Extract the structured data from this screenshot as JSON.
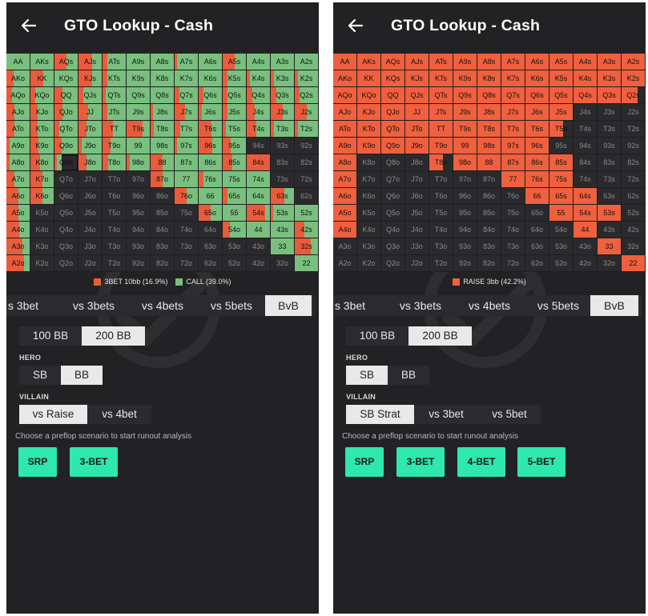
{
  "colors": {
    "panel_bg": "#222225",
    "empty_cell": "#2a2a2d",
    "action_red": "#ea5b3b",
    "call_green": "#79c07f",
    "raise_red": "#f0603e",
    "accent_teal": "#2ee8ae"
  },
  "hand_labels": [
    [
      "AA",
      "AKs",
      "AQs",
      "AJs",
      "ATs",
      "A9s",
      "A8s",
      "A7s",
      "A6s",
      "A5s",
      "A4s",
      "A3s",
      "A2s"
    ],
    [
      "AKo",
      "KK",
      "KQs",
      "KJs",
      "KTs",
      "K9s",
      "K8s",
      "K7s",
      "K6s",
      "K5s",
      "K4s",
      "K3s",
      "K2s"
    ],
    [
      "AQo",
      "KQo",
      "QQ",
      "QJs",
      "QTs",
      "Q9s",
      "Q8s",
      "Q7s",
      "Q6s",
      "Q5s",
      "Q4s",
      "Q3s",
      "Q2s"
    ],
    [
      "AJo",
      "KJo",
      "QJo",
      "JJ",
      "JTs",
      "J9s",
      "J8s",
      "J7s",
      "J6s",
      "J5s",
      "J4s",
      "J3s",
      "J2s"
    ],
    [
      "ATo",
      "KTo",
      "QTo",
      "JTo",
      "TT",
      "T9s",
      "T8s",
      "T7s",
      "T6s",
      "T5s",
      "T4s",
      "T3s",
      "T2s"
    ],
    [
      "A9o",
      "K9o",
      "Q9o",
      "J9o",
      "T9o",
      "99",
      "98s",
      "97s",
      "96s",
      "95s",
      "94s",
      "93s",
      "92s"
    ],
    [
      "A8o",
      "K8o",
      "Q8o",
      "J8o",
      "T8o",
      "98o",
      "88",
      "87s",
      "86s",
      "85s",
      "84s",
      "83s",
      "82s"
    ],
    [
      "A7o",
      "K7o",
      "Q7o",
      "J7o",
      "T7o",
      "97o",
      "87o",
      "77",
      "76s",
      "75s",
      "74s",
      "73s",
      "72s"
    ],
    [
      "A6o",
      "K6o",
      "Q6o",
      "J6o",
      "T6o",
      "96o",
      "86o",
      "76o",
      "66",
      "65s",
      "64s",
      "63s",
      "62s"
    ],
    [
      "A5o",
      "K5o",
      "Q5o",
      "J5o",
      "T5o",
      "95o",
      "85o",
      "75o",
      "65o",
      "55",
      "54s",
      "53s",
      "52s"
    ],
    [
      "A4o",
      "K4o",
      "Q4o",
      "J4o",
      "T4o",
      "94o",
      "84o",
      "74o",
      "64o",
      "54o",
      "44",
      "43s",
      "42s"
    ],
    [
      "A3o",
      "K3o",
      "Q3o",
      "J3o",
      "T3o",
      "93o",
      "83o",
      "73o",
      "63o",
      "53o",
      "43o",
      "33",
      "32s"
    ],
    [
      "A2o",
      "K2o",
      "Q2o",
      "J2o",
      "T2o",
      "92o",
      "82o",
      "72o",
      "62o",
      "52o",
      "42o",
      "32o",
      "22"
    ]
  ],
  "left": {
    "title": "GTO Lookup - Cash",
    "back_icon": "arrow-left-icon",
    "legend": [
      {
        "label": "3BET 10bb (16.9%)",
        "color": "#ea5b3b"
      },
      {
        "label": "CALL (39.0%)",
        "color": "#79c07f"
      }
    ],
    "tabs": [
      {
        "label": "s 3bet",
        "active": false
      },
      {
        "label": "vs 3bets",
        "active": false
      },
      {
        "label": "vs 4bets",
        "active": false
      },
      {
        "label": "vs 5bets",
        "active": false
      },
      {
        "label": "BvB",
        "active": true
      }
    ],
    "stacks": [
      {
        "label": "100 BB",
        "active": false
      },
      {
        "label": "200 BB",
        "active": true
      }
    ],
    "hero_label": "HERO",
    "hero": [
      {
        "label": "SB",
        "active": false
      },
      {
        "label": "BB",
        "active": true
      }
    ],
    "villain_label": "VILLAIN",
    "villain": [
      {
        "label": "vs Raise",
        "active": true
      },
      {
        "label": "vs 4bet",
        "active": false
      }
    ],
    "hint": "Choose a preflop scenario to start runout analysis",
    "buttons": [
      "SRP",
      "3-BET"
    ],
    "strategy": [
      [
        [
          0,
          1
        ],
        [
          0,
          1
        ],
        [
          0.5,
          0.5
        ],
        [
          0.6,
          0.4
        ],
        [
          0.2,
          0.8
        ],
        [
          0,
          1
        ],
        [
          0,
          1
        ],
        [
          0.1,
          0.9
        ],
        [
          0,
          1
        ],
        [
          0.5,
          0.5
        ],
        [
          0,
          1
        ],
        [
          0,
          1
        ],
        [
          0,
          1
        ]
      ],
      [
        [
          0.3,
          0.7
        ],
        [
          0.55,
          0.45
        ],
        [
          0,
          1
        ],
        [
          0.6,
          0.4
        ],
        [
          0.2,
          0.8
        ],
        [
          0,
          1
        ],
        [
          0,
          1
        ],
        [
          0,
          1
        ],
        [
          0,
          1
        ],
        [
          0.2,
          0.8
        ],
        [
          0.15,
          0.85
        ],
        [
          0.15,
          0.85
        ],
        [
          0.15,
          0.85
        ]
      ],
      [
        [
          0.25,
          0.75
        ],
        [
          0.2,
          0.8
        ],
        [
          0.35,
          0.65
        ],
        [
          0.2,
          0.8
        ],
        [
          0.15,
          0.85
        ],
        [
          0,
          1
        ],
        [
          0,
          1
        ],
        [
          0.2,
          0.8
        ],
        [
          0.2,
          0.8
        ],
        [
          0.2,
          0.8
        ],
        [
          0.25,
          0.75
        ],
        [
          0.25,
          0.75
        ],
        [
          0.2,
          0.8
        ]
      ],
      [
        [
          0.35,
          0.65
        ],
        [
          0.3,
          0.7
        ],
        [
          0.35,
          0.65
        ],
        [
          0.4,
          0.6
        ],
        [
          0.2,
          0.8
        ],
        [
          0,
          1
        ],
        [
          0.1,
          0.9
        ],
        [
          0.45,
          0.55
        ],
        [
          0.15,
          0.85
        ],
        [
          0.2,
          0.8
        ],
        [
          0.35,
          0.65
        ],
        [
          0.5,
          0.5
        ],
        [
          0.5,
          0.5
        ]
      ],
      [
        [
          0.35,
          0.65
        ],
        [
          0.3,
          0.7
        ],
        [
          0.2,
          0.8
        ],
        [
          0.35,
          0.65
        ],
        [
          0.45,
          0.55
        ],
        [
          0.7,
          0.3
        ],
        [
          0.15,
          0.85
        ],
        [
          0.25,
          0.75
        ],
        [
          0.55,
          0.45
        ],
        [
          0.15,
          0.85
        ],
        [
          0.4,
          0.6
        ],
        [
          0.15,
          0.85
        ],
        [
          0.15,
          0.85
        ]
      ],
      [
        [
          0.15,
          0.85
        ],
        [
          0.35,
          0.65
        ],
        [
          0.3,
          0.7
        ],
        [
          0.15,
          0.85
        ],
        [
          0.35,
          0.65
        ],
        [
          0,
          1
        ],
        [
          0,
          1
        ],
        [
          0.1,
          0.9
        ],
        [
          0.6,
          0.4
        ],
        [
          0.35,
          0.65
        ],
        [
          0,
          0
        ],
        [
          0,
          0
        ],
        [
          0,
          0
        ]
      ],
      [
        [
          0.15,
          0.85
        ],
        [
          0.4,
          0.6
        ],
        [
          0.1,
          0.2
        ],
        [
          0.35,
          0.65
        ],
        [
          0.25,
          0.75
        ],
        [
          0.15,
          0.85
        ],
        [
          0.5,
          0.5
        ],
        [
          0,
          1
        ],
        [
          0,
          1
        ],
        [
          0.4,
          0.6
        ],
        [
          1,
          0
        ],
        [
          0,
          0
        ],
        [
          0,
          0
        ]
      ],
      [
        [
          0.35,
          0.65
        ],
        [
          0.5,
          0.5
        ],
        [
          0,
          0
        ],
        [
          0,
          0
        ],
        [
          0,
          0
        ],
        [
          0,
          0
        ],
        [
          0.5,
          0.5
        ],
        [
          0,
          1
        ],
        [
          0.2,
          0.8
        ],
        [
          0,
          1
        ],
        [
          0,
          1
        ],
        [
          0,
          0
        ],
        [
          0,
          0
        ]
      ],
      [
        [
          0.5,
          0.5
        ],
        [
          0.5,
          0.5
        ],
        [
          0,
          0
        ],
        [
          0,
          0
        ],
        [
          0,
          0
        ],
        [
          0,
          0
        ],
        [
          0,
          0
        ],
        [
          0.5,
          0.5
        ],
        [
          0,
          1
        ],
        [
          0.2,
          0.8
        ],
        [
          0,
          1
        ],
        [
          0.6,
          0.4
        ],
        [
          0,
          0
        ]
      ],
      [
        [
          0.5,
          0.5
        ],
        [
          0,
          0
        ],
        [
          0,
          0
        ],
        [
          0,
          0
        ],
        [
          0,
          0
        ],
        [
          0,
          0
        ],
        [
          0,
          0
        ],
        [
          0,
          0
        ],
        [
          0.5,
          0.5
        ],
        [
          0,
          1
        ],
        [
          0.8,
          0.2
        ],
        [
          0.1,
          0.9
        ],
        [
          0,
          1
        ]
      ],
      [
        [
          0.55,
          0.45
        ],
        [
          0,
          0
        ],
        [
          0,
          0
        ],
        [
          0,
          0
        ],
        [
          0,
          0
        ],
        [
          0,
          0
        ],
        [
          0,
          0
        ],
        [
          0,
          0
        ],
        [
          0,
          0
        ],
        [
          0.3,
          0.7
        ],
        [
          0,
          1
        ],
        [
          0,
          1
        ],
        [
          0.4,
          0.6
        ]
      ],
      [
        [
          0.7,
          0.3
        ],
        [
          0,
          0
        ],
        [
          0,
          0
        ],
        [
          0,
          0
        ],
        [
          0,
          0
        ],
        [
          0,
          0
        ],
        [
          0,
          0
        ],
        [
          0,
          0
        ],
        [
          0,
          0
        ],
        [
          0,
          0
        ],
        [
          0,
          0
        ],
        [
          0,
          1
        ],
        [
          0.7,
          0.3
        ]
      ],
      [
        [
          0.75,
          0.25
        ],
        [
          0,
          0
        ],
        [
          0,
          0
        ],
        [
          0,
          0
        ],
        [
          0,
          0
        ],
        [
          0,
          0
        ],
        [
          0,
          0
        ],
        [
          0,
          0
        ],
        [
          0,
          0
        ],
        [
          0,
          0
        ],
        [
          0,
          0
        ],
        [
          0,
          0
        ],
        [
          0,
          1
        ]
      ]
    ]
  },
  "right": {
    "title": "GTO Lookup - Cash",
    "back_icon": "arrow-left-icon",
    "legend": [
      {
        "label": "RAISE 3bb (42.2%)",
        "color": "#f0603e"
      }
    ],
    "tabs": [
      {
        "label": "s 3bet",
        "active": false
      },
      {
        "label": "vs 3bets",
        "active": false
      },
      {
        "label": "vs 4bets",
        "active": false
      },
      {
        "label": "vs 5bets",
        "active": false
      },
      {
        "label": "BvB",
        "active": true
      }
    ],
    "stacks": [
      {
        "label": "100 BB",
        "active": false
      },
      {
        "label": "200 BB",
        "active": true
      }
    ],
    "hero_label": "HERO",
    "hero": [
      {
        "label": "SB",
        "active": true
      },
      {
        "label": "BB",
        "active": false
      }
    ],
    "villain_label": "VILLAIN",
    "villain": [
      {
        "label": "SB Strat",
        "active": true
      },
      {
        "label": "vs 3bet",
        "active": false
      },
      {
        "label": "vs 5bet",
        "active": false
      }
    ],
    "hint": "Choose a preflop scenario to start runout analysis",
    "buttons": [
      "SRP",
      "3-BET",
      "4-BET",
      "5-BET"
    ],
    "raise_freq": [
      [
        1,
        1,
        1,
        1,
        1,
        1,
        1,
        1,
        1,
        1,
        1,
        1,
        1
      ],
      [
        1,
        1,
        1,
        1,
        1,
        1,
        1,
        1,
        1,
        1,
        1,
        1,
        1
      ],
      [
        1,
        1,
        1,
        1,
        1,
        1,
        1,
        1,
        1,
        1,
        1,
        1,
        0.7
      ],
      [
        1,
        1,
        1,
        1,
        1,
        1,
        1,
        1,
        1,
        1,
        0,
        0,
        0
      ],
      [
        1,
        1,
        1,
        1,
        1,
        1,
        1,
        1,
        1,
        0.6,
        0,
        0,
        0
      ],
      [
        1,
        1,
        1,
        1,
        1,
        1,
        1,
        1,
        1,
        0,
        0,
        0,
        0
      ],
      [
        1,
        0,
        0,
        0,
        0.6,
        1,
        1,
        1,
        1,
        1,
        0,
        0,
        0
      ],
      [
        1,
        0,
        0,
        0,
        0,
        0,
        0,
        1,
        1,
        1,
        0,
        0,
        0
      ],
      [
        1,
        0,
        0,
        0,
        0,
        0,
        0,
        0,
        1,
        1,
        1,
        0,
        0
      ],
      [
        1,
        0,
        0,
        0,
        0,
        0,
        0,
        0,
        0,
        1,
        1,
        1,
        0
      ],
      [
        1,
        0,
        0,
        0,
        0,
        0,
        0,
        0,
        0,
        0,
        1,
        0,
        0
      ],
      [
        0,
        0,
        0,
        0,
        0,
        0,
        0,
        0,
        0,
        0,
        0,
        1,
        0
      ],
      [
        0,
        0,
        0,
        0,
        0,
        0,
        0,
        0,
        0,
        0,
        0,
        0,
        1
      ]
    ]
  }
}
